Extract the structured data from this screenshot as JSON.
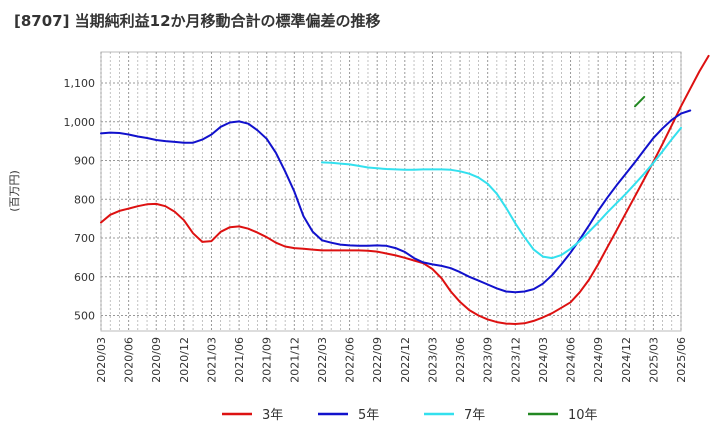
{
  "chart_data": {
    "type": "line",
    "title": "[8707]  当期純利益12か月移動合計の標準偏差の推移",
    "ylabel": "(百万円)",
    "xlabel": "",
    "ylim": [
      460,
      1180
    ],
    "yticks": [
      500,
      600,
      700,
      800,
      900,
      1000,
      1100
    ],
    "ytick_labels": [
      "500",
      "600",
      "700",
      "800",
      "900",
      "1,000",
      "1,100"
    ],
    "xticks": [
      "2020/03",
      "2020/06",
      "2020/09",
      "2020/12",
      "2021/03",
      "2021/06",
      "2021/09",
      "2021/12",
      "2022/03",
      "2022/06",
      "2022/09",
      "2022/12",
      "2023/03",
      "2023/06",
      "2023/09",
      "2023/12",
      "2024/03",
      "2024/06",
      "2024/09",
      "2024/12",
      "2025/03",
      "2025/06"
    ],
    "grid": true,
    "legend_position": "bottom",
    "series": [
      {
        "name": "3年",
        "color": "#dd1111",
        "start": "2020/03",
        "values": [
          740,
          760,
          770,
          776,
          782,
          787,
          788,
          782,
          768,
          746,
          712,
          690,
          692,
          716,
          728,
          730,
          724,
          714,
          702,
          688,
          678,
          674,
          672,
          670,
          668,
          668,
          668,
          668,
          668,
          667,
          665,
          660,
          655,
          649,
          642,
          635,
          620,
          596,
          562,
          535,
          514,
          500,
          490,
          483,
          479,
          478,
          480,
          486,
          495,
          506,
          520,
          534,
          560,
          592,
          632,
          676,
          720,
          764,
          808,
          852,
          897,
          943,
          991,
          1040,
          1085,
          1130,
          1170
        ]
      },
      {
        "name": "5年",
        "color": "#1111cc",
        "start": "2020/03",
        "values": [
          970,
          972,
          971,
          967,
          962,
          958,
          953,
          950,
          948,
          946,
          946,
          954,
          967,
          987,
          998,
          1001,
          995,
          978,
          956,
          920,
          872,
          820,
          756,
          716,
          694,
          688,
          683,
          681,
          680,
          680,
          681,
          680,
          674,
          664,
          648,
          637,
          632,
          628,
          622,
          612,
          600,
          590,
          580,
          570,
          562,
          560,
          562,
          568,
          582,
          604,
          632,
          662,
          696,
          732,
          770,
          804,
          836,
          866,
          896,
          927,
          958,
          983,
          1005,
          1021,
          1029
        ]
      },
      {
        "name": "7年",
        "color": "#33e0ee",
        "start": "2022/03",
        "values": [
          895,
          894,
          892,
          890,
          886,
          882,
          880,
          878,
          877,
          876,
          876,
          877,
          877,
          877,
          876,
          872,
          866,
          856,
          840,
          814,
          778,
          738,
          702,
          670,
          652,
          648,
          656,
          672,
          692,
          716,
          740,
          766,
          790,
          814,
          840,
          866,
          894,
          924,
          955,
          984
        ]
      },
      {
        "name": "10年",
        "color": "#228822",
        "start": "2025/01",
        "values": [
          1040,
          1064
        ]
      }
    ]
  }
}
